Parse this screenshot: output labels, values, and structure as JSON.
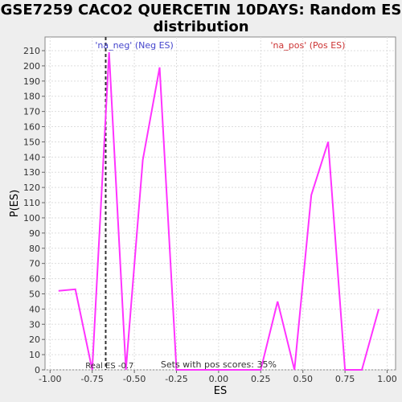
{
  "chart_data": {
    "type": "line",
    "title": "GSE7259 CACO2 QUERCETIN 10DAYS: Random ES distribution",
    "xlabel": "ES",
    "ylabel": "P(ES)",
    "xlim": [
      -1.03,
      1.05
    ],
    "ylim": [
      0,
      219
    ],
    "x_ticks": [
      -1.0,
      -0.75,
      -0.5,
      -0.25,
      0.0,
      0.25,
      0.5,
      0.75,
      1.0
    ],
    "x_tick_labels": [
      "-1.00",
      "-0.75",
      "-0.50",
      "-0.25",
      "0.00",
      "0.25",
      "0.50",
      "0.75",
      "1.00"
    ],
    "y_ticks": [
      0,
      10,
      20,
      30,
      40,
      50,
      60,
      70,
      80,
      90,
      100,
      110,
      120,
      130,
      140,
      150,
      160,
      170,
      180,
      190,
      200,
      210
    ],
    "grid": true,
    "series": [
      {
        "color": "#ff33ff",
        "x": [
          -0.95,
          -0.85,
          -0.75,
          -0.65,
          -0.55,
          -0.45,
          -0.35,
          -0.25,
          -0.15,
          -0.05,
          0.05,
          0.15,
          0.25,
          0.35,
          0.45,
          0.55,
          0.65,
          0.75,
          0.85,
          0.95
        ],
        "y": [
          52,
          53,
          0,
          209,
          0,
          138,
          199,
          0,
          0,
          0,
          0,
          0,
          0,
          45,
          0,
          115,
          150,
          0,
          0,
          40
        ]
      }
    ],
    "real_es": -0.67,
    "real_es_label": "Real ES -0.7",
    "neg_label": "'na_neg' (Neg ES)",
    "pos_label": "'na_pos' (Pos ES)",
    "footer": "Sets with pos scores: 35%",
    "colors": {
      "line": "#ff33ff",
      "neg_label": "#4444cc",
      "pos_label": "#cc3333",
      "real_es_line": "#333333",
      "grid": "#dddddd",
      "plot_bg": "#ffffff",
      "page_bg": "#eeeeee"
    }
  }
}
